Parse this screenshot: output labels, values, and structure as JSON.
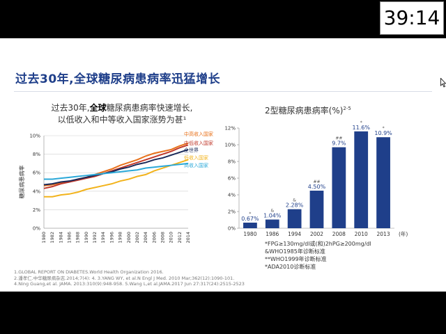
{
  "timer": {
    "text": "39:14"
  },
  "slide": {
    "title": "过去30年,全球糖尿病患病率迅猛增长",
    "left_caption": {
      "line1_prefix": "过去30年,",
      "line1_bold": "全球",
      "line1_suffix": "糖尿病患病率快速增长,",
      "line2": "以低收入和中等收入国家涨势为甚¹"
    },
    "right_title": {
      "text": "2型糖尿病患病率(%)",
      "sup": "2-5"
    },
    "notes": [
      "*FPG≥130mg/dl或(和)2hPG≥200mg/dl",
      "&WHO1985年诊断标准",
      "**WHO1999年诊断标准",
      "*ADA2010诊断标准"
    ],
    "references": [
      "1.GLOBAL REPORT ON DIABETES.World Health Organization 2016.",
      "2.潘孝仁.中华糖尿病杂志.2014;7(4): 4. 3.YANG WY, et al.N Engl J Med. 2010 Mar;362(12):1090-101.",
      "4.Ning Guang,et al. JAMA. 2013:310(9):948-958. 5.Wang L,et al.JAMA.2017 Jun 27:317(24):2515-2523"
    ]
  },
  "chart_data": [
    {
      "type": "line",
      "title": "",
      "xlabel": "",
      "ylabel": "糖尿病患病率",
      "ylim": [
        0,
        10
      ],
      "y_ticks": [
        "0%",
        "2%",
        "4%",
        "6%",
        "8%",
        "10%"
      ],
      "x": [
        1980,
        1982,
        1984,
        1986,
        1988,
        1990,
        1992,
        1994,
        1996,
        1998,
        2000,
        2002,
        2004,
        2006,
        2008,
        2010,
        2012,
        2014
      ],
      "grid": true,
      "legend": "inline-right",
      "series": [
        {
          "name": "中高收入国家",
          "color": "#e8711a",
          "values": [
            4.6,
            4.7,
            4.9,
            5.0,
            5.3,
            5.5,
            5.8,
            6.1,
            6.4,
            6.8,
            7.1,
            7.4,
            7.8,
            8.1,
            8.3,
            8.5,
            8.9,
            9.2
          ]
        },
        {
          "name": "中低收入国家",
          "color": "#c0392b",
          "values": [
            4.3,
            4.5,
            4.8,
            5.0,
            5.2,
            5.4,
            5.6,
            5.9,
            6.2,
            6.5,
            6.8,
            7.1,
            7.4,
            7.7,
            8.0,
            8.3,
            8.7,
            9.0
          ]
        },
        {
          "name": "全世界",
          "color": "#1a2a5a",
          "values": [
            4.7,
            4.8,
            5.0,
            5.1,
            5.3,
            5.5,
            5.7,
            5.9,
            6.1,
            6.4,
            6.6,
            6.9,
            7.1,
            7.4,
            7.6,
            7.9,
            8.2,
            8.5
          ]
        },
        {
          "name": "低收入国家",
          "color": "#f2b31c",
          "values": [
            3.4,
            3.4,
            3.6,
            3.7,
            3.9,
            4.2,
            4.4,
            4.6,
            4.8,
            5.1,
            5.3,
            5.6,
            5.8,
            6.2,
            6.5,
            6.8,
            7.1,
            7.4
          ]
        },
        {
          "name": "高收入国家",
          "color": "#2aa8d8",
          "values": [
            5.3,
            5.3,
            5.4,
            5.5,
            5.6,
            5.7,
            5.8,
            5.9,
            6.0,
            6.1,
            6.2,
            6.3,
            6.5,
            6.6,
            6.7,
            6.8,
            6.9,
            7.0
          ]
        }
      ]
    },
    {
      "type": "bar",
      "title": "2型糖尿病患病率(%)",
      "xlabel": "(年)",
      "ylabel": "",
      "ylim": [
        0,
        12
      ],
      "y_ticks": [
        "0%",
        "2%",
        "4%",
        "6%",
        "8%",
        "10%",
        "12%"
      ],
      "categories": [
        "1980",
        "1986",
        "1994",
        "2002",
        "2008",
        "2010",
        "2013"
      ],
      "values": [
        0.67,
        1.04,
        2.28,
        4.5,
        9.7,
        11.6,
        10.9
      ],
      "value_labels": [
        "0.67%",
        "1.04%",
        "2.28%",
        "4.50%",
        "9.7%",
        "11.6%",
        "10.9%"
      ],
      "markers": [
        "*",
        "&",
        "&",
        "##",
        "##",
        "*",
        "*"
      ],
      "color": "#1f3f8a",
      "grid": false
    }
  ]
}
